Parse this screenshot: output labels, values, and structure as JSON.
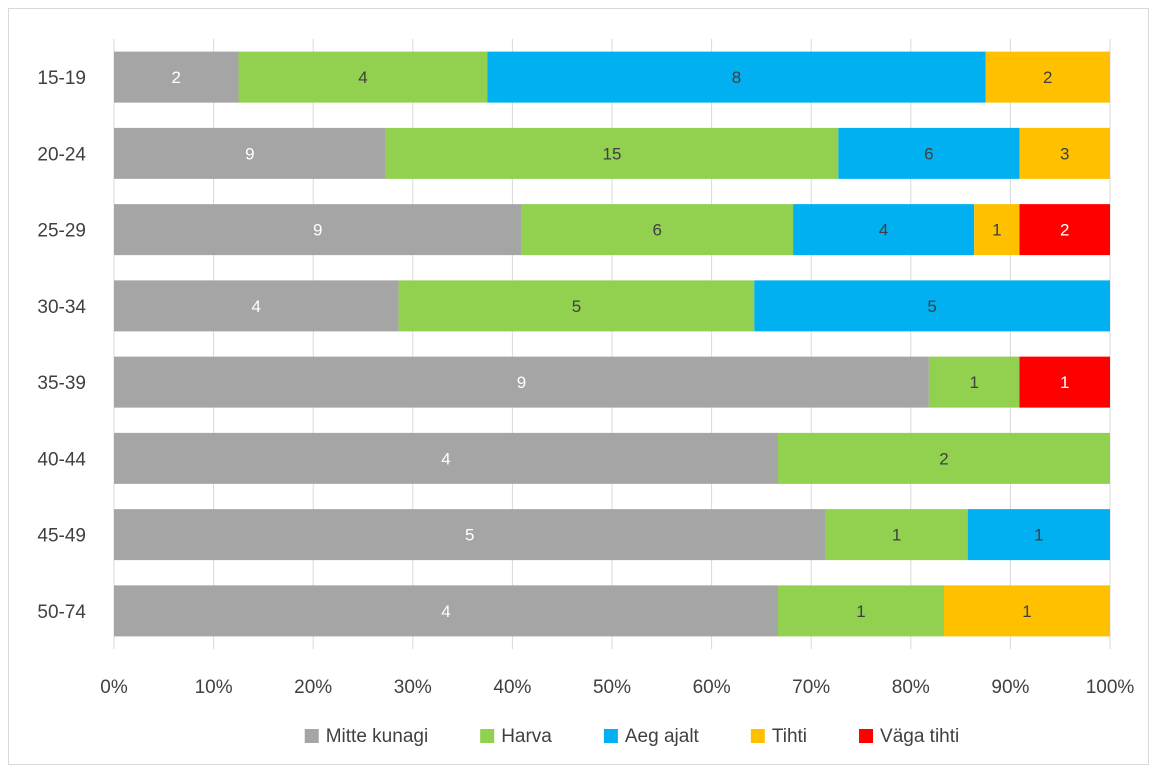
{
  "chart_data": {
    "type": "bar",
    "orientation": "horizontal",
    "stacked": "percent",
    "title": "",
    "xlabel": "",
    "ylabel": "",
    "xlim": [
      0,
      100
    ],
    "x_ticks": [
      "0%",
      "10%",
      "20%",
      "30%",
      "40%",
      "50%",
      "60%",
      "70%",
      "80%",
      "90%",
      "100%"
    ],
    "grid": "vertical",
    "legend_position": "bottom",
    "categories": [
      "15-19",
      "20-24",
      "25-29",
      "30-34",
      "35-39",
      "40-44",
      "45-49",
      "50-74"
    ],
    "series": [
      {
        "name": "Mitte kunagi",
        "color": "#a5a5a5",
        "label_color": "#ffffff",
        "values": [
          2,
          9,
          9,
          4,
          9,
          4,
          5,
          4
        ]
      },
      {
        "name": "Harva",
        "color": "#92d050",
        "label_color": "#404040",
        "values": [
          4,
          15,
          6,
          5,
          1,
          2,
          1,
          1
        ]
      },
      {
        "name": "Aeg ajalt",
        "color": "#00b0f0",
        "label_color": "#404040",
        "values": [
          8,
          6,
          4,
          5,
          0,
          0,
          1,
          0
        ]
      },
      {
        "name": "Tihti",
        "color": "#ffc000",
        "label_color": "#404040",
        "values": [
          2,
          3,
          1,
          0,
          0,
          0,
          0,
          1
        ]
      },
      {
        "name": "Väga tihti",
        "color": "#ff0000",
        "label_color": "#ffffff",
        "values": [
          0,
          0,
          2,
          0,
          1,
          0,
          0,
          0
        ]
      }
    ]
  }
}
